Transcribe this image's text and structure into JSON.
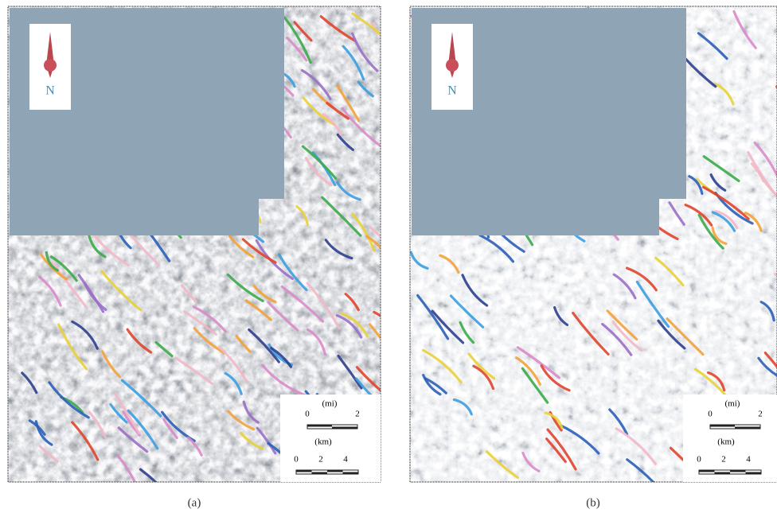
{
  "panels": [
    {
      "label": "(a)",
      "north": "N",
      "scale": {
        "mi_unit": "(mi)",
        "mi_ticks": [
          "0",
          "2"
        ],
        "km_unit": "(km)",
        "km_ticks": [
          "0",
          "2",
          "4"
        ]
      }
    },
    {
      "label": "(b)",
      "north": "N",
      "scale": {
        "mi_unit": "(mi)",
        "mi_ticks": [
          "0",
          "2"
        ],
        "km_unit": "(km)",
        "km_ticks": [
          "0",
          "2",
          "4"
        ]
      }
    }
  ]
}
